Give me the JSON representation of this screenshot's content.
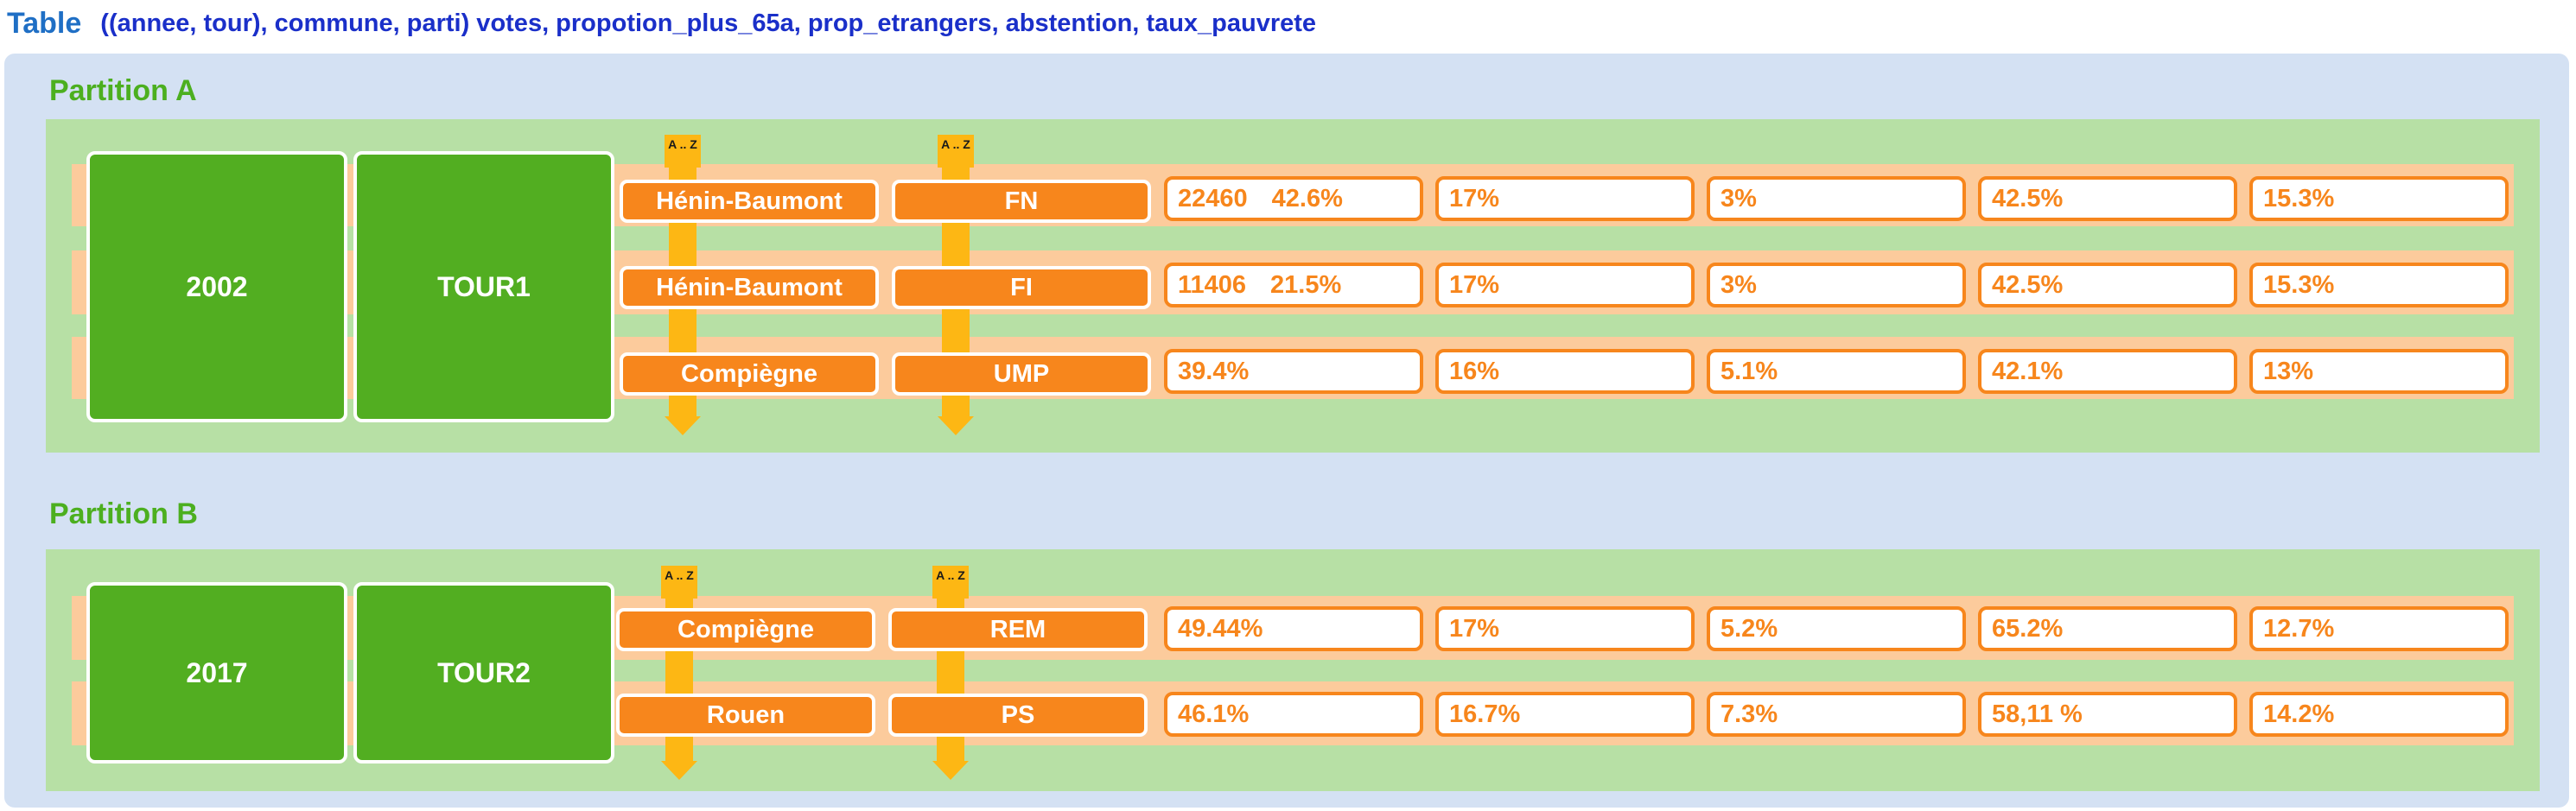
{
  "header": {
    "title": "Table",
    "schema": "((annee, tour), commune, parti) votes, propotion_plus_65a, prop_etrangers, abstention, taux_pauvrete"
  },
  "sort_badge_label": "A .. Z",
  "partitions": [
    {
      "label": "Partition A",
      "annee": "2002",
      "tour": "TOUR1",
      "rows": [
        {
          "commune": "Hénin-Baumont",
          "parti": "FN",
          "votes": "22460",
          "prop_plus_65a": "42.6%",
          "prop_etrangers": "17%",
          "abstention": "3%",
          "col5": "42.5%",
          "taux_pauvrete": "15.3%"
        },
        {
          "commune": "Hénin-Baumont",
          "parti": "FI",
          "votes": "11406",
          "prop_plus_65a": "21.5%",
          "prop_etrangers": "17%",
          "abstention": "3%",
          "col5": "42.5%",
          "taux_pauvrete": "15.3%"
        },
        {
          "commune": "Compiègne",
          "parti": "UMP",
          "votes": "",
          "prop_plus_65a": "39.4%",
          "prop_etrangers": "16%",
          "abstention": "5.1%",
          "col5": "42.1%",
          "taux_pauvrete": "13%"
        }
      ]
    },
    {
      "label": "Partition B",
      "annee": "2017",
      "tour": "TOUR2",
      "rows": [
        {
          "commune": "Compiègne",
          "parti": "REM",
          "votes": "",
          "prop_plus_65a": "49.44%",
          "prop_etrangers": "17%",
          "abstention": "5.2%",
          "col5": "65.2%",
          "taux_pauvrete": "12.7%"
        },
        {
          "commune": "Rouen",
          "parti": "PS",
          "votes": "",
          "prop_plus_65a": "46.1%",
          "prop_etrangers": "16.7%",
          "abstention": "7.3%",
          "col5": "58,11 %",
          "taux_pauvrete": "14.2%"
        }
      ]
    }
  ],
  "colors": {
    "container_bg": "#d4e1f3",
    "partition_band": "#b7e0a5",
    "key_green": "#52ae21",
    "row_peach": "#fccb9c",
    "orange": "#f7861c",
    "sort_yellow": "#fdb714",
    "title_blue": "#1f6fc5",
    "schema_blue": "#1a2fc9",
    "partition_label": "#4caf1f"
  }
}
